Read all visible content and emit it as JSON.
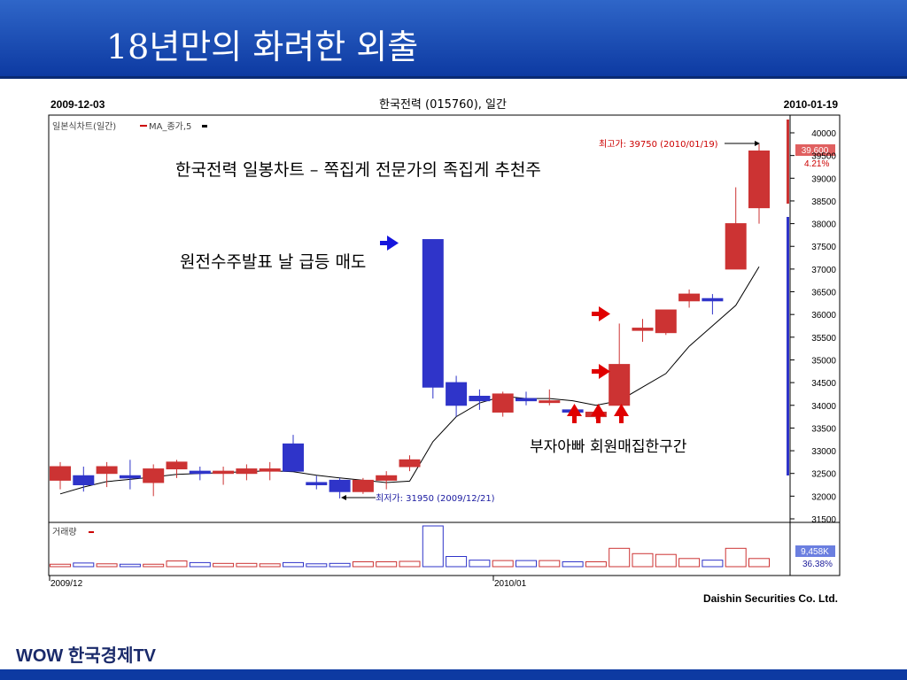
{
  "slide_title": "18년만의 화려한 외출",
  "brand": {
    "logo_text": "WOW 한국경제TV",
    "bar_color": "#0d3aa2"
  },
  "chart_data": {
    "type": "candlestick",
    "start_date": "2009-12-03",
    "end_date": "2010-01-19",
    "stock_title": "한국전력 (015760), 일간",
    "legend_main": "일본식차트(일간)",
    "legend_ma": "MA_종가,5",
    "volume_legend": "거래량",
    "x_tick_labels": [
      "2009/12",
      "2010/01"
    ],
    "ylim": [
      31500,
      40000
    ],
    "y_ticks": [
      40000,
      39500,
      39000,
      38500,
      38000,
      37500,
      37000,
      36500,
      36000,
      35500,
      35000,
      34500,
      34000,
      33500,
      33000,
      32500,
      32000,
      31500
    ],
    "current_price_label": "39,600",
    "current_change_label": "4.21%",
    "volume_value_label": "9,458K",
    "volume_change_label": "36.38%",
    "high_label": "최고가: 39750 (2010/01/19)",
    "low_label": "최저가: 31950 (2009/12/21)",
    "company_credit": "Daishin Securities Co. Ltd.",
    "colors": {
      "up": "#cc3333",
      "down": "#2f34c9",
      "ma": "#000000"
    },
    "candles": [
      {
        "o": 32350,
        "h": 32750,
        "l": 32150,
        "c": 32650
      },
      {
        "o": 32450,
        "h": 32650,
        "l": 32100,
        "c": 32250
      },
      {
        "o": 32500,
        "h": 32750,
        "l": 32200,
        "c": 32650
      },
      {
        "o": 32450,
        "h": 32800,
        "l": 32150,
        "c": 32400
      },
      {
        "o": 32300,
        "h": 32700,
        "l": 32000,
        "c": 32600
      },
      {
        "o": 32600,
        "h": 32800,
        "l": 32400,
        "c": 32750
      },
      {
        "o": 32550,
        "h": 32650,
        "l": 32350,
        "c": 32500
      },
      {
        "o": 32500,
        "h": 32650,
        "l": 32250,
        "c": 32550
      },
      {
        "o": 32500,
        "h": 32700,
        "l": 32350,
        "c": 32600
      },
      {
        "o": 32550,
        "h": 32750,
        "l": 32350,
        "c": 32600
      },
      {
        "o": 33150,
        "h": 33350,
        "l": 32550,
        "c": 32550
      },
      {
        "o": 32300,
        "h": 32450,
        "l": 32150,
        "c": 32250
      },
      {
        "o": 32350,
        "h": 32400,
        "l": 31950,
        "c": 32100
      },
      {
        "o": 32100,
        "h": 32400,
        "l": 32050,
        "c": 32350
      },
      {
        "o": 32350,
        "h": 32550,
        "l": 32150,
        "c": 32450
      },
      {
        "o": 32650,
        "h": 32900,
        "l": 32550,
        "c": 32800
      },
      {
        "o": 37650,
        "h": 37650,
        "l": 34150,
        "c": 34400
      },
      {
        "o": 34500,
        "h": 34650,
        "l": 33750,
        "c": 34000
      },
      {
        "o": 34200,
        "h": 34350,
        "l": 33900,
        "c": 34100
      },
      {
        "o": 33850,
        "h": 34300,
        "l": 33750,
        "c": 34250
      },
      {
        "o": 34150,
        "h": 34300,
        "l": 34000,
        "c": 34100
      },
      {
        "o": 34100,
        "h": 34350,
        "l": 34000,
        "c": 34100
      },
      {
        "o": 33900,
        "h": 33950,
        "l": 33800,
        "c": 33850
      },
      {
        "o": 33750,
        "h": 33900,
        "l": 33700,
        "c": 33850
      },
      {
        "o": 34000,
        "h": 35800,
        "l": 34000,
        "c": 34900
      },
      {
        "o": 35650,
        "h": 35900,
        "l": 35400,
        "c": 35700
      },
      {
        "o": 35600,
        "h": 36100,
        "l": 35550,
        "c": 36100
      },
      {
        "o": 36300,
        "h": 36550,
        "l": 36150,
        "c": 36450
      },
      {
        "o": 36350,
        "h": 36450,
        "l": 36000,
        "c": 36300
      },
      {
        "o": 37000,
        "h": 38800,
        "l": 37000,
        "c": 38000
      },
      {
        "o": 38350,
        "h": 39750,
        "l": 38000,
        "c": 39600
      }
    ],
    "ma5": [
      32050,
      32200,
      32320,
      32370,
      32420,
      32480,
      32500,
      32520,
      32540,
      32560,
      32540,
      32460,
      32400,
      32350,
      32300,
      32330,
      33200,
      33750,
      34050,
      34200,
      34150,
      34150,
      34100,
      34000,
      34100,
      34400,
      34700,
      35300,
      35750,
      36200,
      37050
    ],
    "volume_relative": [
      0.06,
      0.09,
      0.07,
      0.06,
      0.06,
      0.14,
      0.1,
      0.08,
      0.08,
      0.07,
      0.1,
      0.07,
      0.08,
      0.12,
      0.12,
      0.13,
      1.0,
      0.25,
      0.16,
      0.15,
      0.15,
      0.15,
      0.12,
      0.12,
      0.45,
      0.32,
      0.3,
      0.2,
      0.16,
      0.45,
      0.2
    ],
    "annotations": [
      "한국전력 일봉차트 – 쪽집게 전문가의 족집게 추천주",
      "원전수주발표 날 급등 매도",
      "부자아빠 회원매집한구간"
    ]
  }
}
